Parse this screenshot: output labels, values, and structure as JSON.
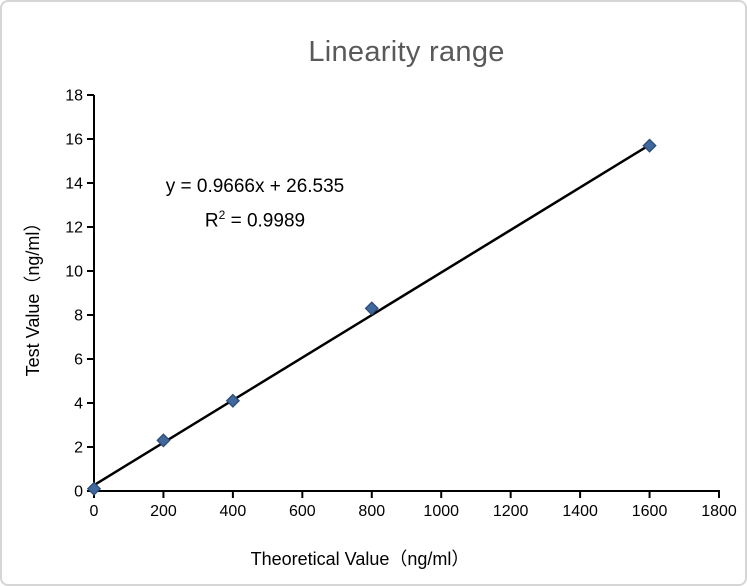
{
  "chart": {
    "title": "Linearity range",
    "equation": "y = 0.9666x + 26.535",
    "r2_prefix": "R",
    "r2_sup": "2",
    "r2_suffix": " = 0.9989",
    "xlabel": "Theoretical Value（ng/ml）",
    "ylabel": "Test Value（ng/ml）"
  },
  "chart_data": {
    "type": "scatter",
    "title": "Linearity range",
    "xlabel": "Theoretical Value（ng/ml）",
    "ylabel": "Test Value（ng/ml）",
    "x": [
      0,
      200,
      400,
      800,
      1600
    ],
    "y": [
      0.1,
      2.3,
      4.1,
      8.3,
      15.7
    ],
    "xlim": [
      0,
      1800
    ],
    "ylim": [
      0,
      18
    ],
    "x_ticks": [
      0,
      200,
      400,
      600,
      800,
      1000,
      1200,
      1400,
      1600,
      1800
    ],
    "y_ticks": [
      0,
      2,
      4,
      6,
      8,
      10,
      12,
      14,
      16,
      18
    ],
    "grid": false,
    "legend": false,
    "marker": "diamond",
    "annotations": [
      "y = 0.9666x + 26.535",
      "R² = 0.9989"
    ],
    "trendline": {
      "equation": "y = 0.9666x + 26.535",
      "r_squared": "R² = 0.9989",
      "slope": 0.9666,
      "intercept": 26.535,
      "display_scale": 0.01,
      "x_start": 0,
      "x_end": 1610
    },
    "colors": {
      "marker_fill": "#41689c",
      "marker_stroke": "#2c4d79",
      "trendline": "#000000",
      "axis": "#000000",
      "title": "#595959",
      "text": "#000000",
      "frame_border": "#d6d6d6",
      "background": "#ffffff"
    }
  }
}
